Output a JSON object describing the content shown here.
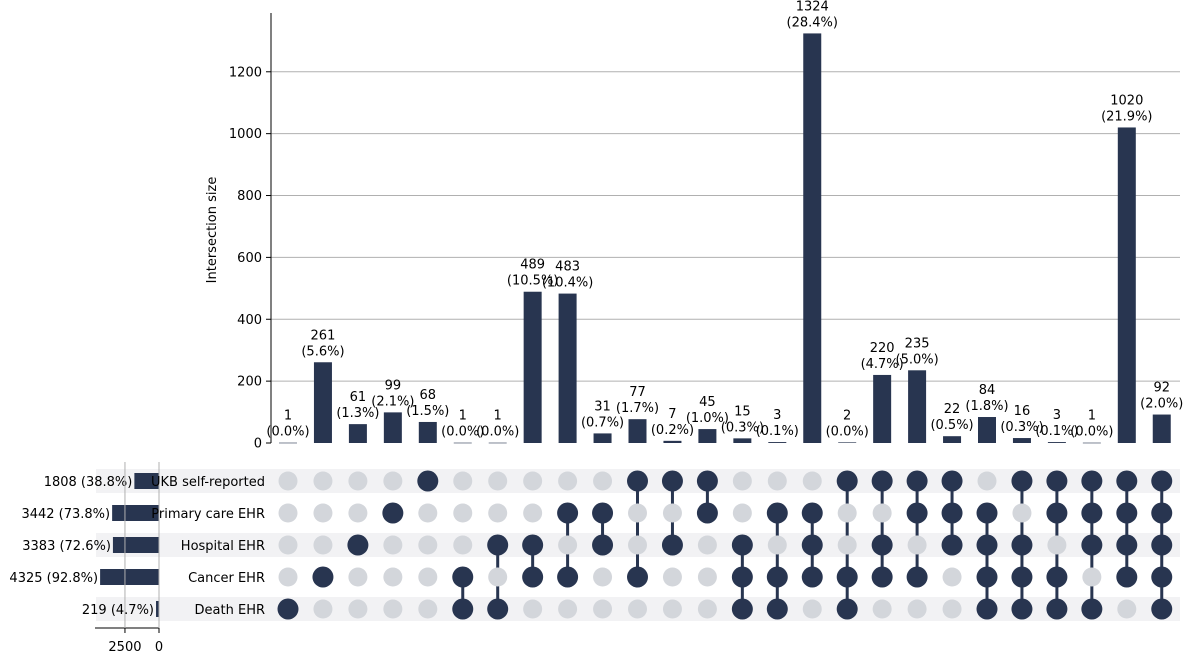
{
  "chart_data": {
    "type": "upset",
    "ylabel": "Intersection size",
    "ylim": [
      0,
      1390
    ],
    "yticks": [
      0,
      200,
      400,
      600,
      800,
      1000,
      1200
    ],
    "grid": true,
    "sets": [
      {
        "name": "UKB self-reported",
        "size": 1808,
        "label": "1808 (38.8%)"
      },
      {
        "name": "Primary care EHR",
        "size": 3442,
        "label": "3442 (73.8%)"
      },
      {
        "name": "Hospital EHR",
        "size": 3383,
        "label": "3383 (72.6%)"
      },
      {
        "name": "Cancer EHR",
        "size": 4325,
        "label": "4325 (92.8%)"
      },
      {
        "name": "Death EHR",
        "size": 219,
        "label": "219 (4.7%)"
      }
    ],
    "set_size_ticks": [
      2500,
      0
    ],
    "set_size_max": 4700,
    "intersections": [
      {
        "value": 1,
        "pct": "(0.0%)",
        "members": [
          0,
          0,
          0,
          0,
          1
        ]
      },
      {
        "value": 261,
        "pct": "(5.6%)",
        "members": [
          0,
          0,
          0,
          1,
          0
        ]
      },
      {
        "value": 61,
        "pct": "(1.3%)",
        "members": [
          0,
          0,
          1,
          0,
          0
        ]
      },
      {
        "value": 99,
        "pct": "(2.1%)",
        "members": [
          0,
          1,
          0,
          0,
          0
        ]
      },
      {
        "value": 68,
        "pct": "(1.5%)",
        "members": [
          1,
          0,
          0,
          0,
          0
        ]
      },
      {
        "value": 1,
        "pct": "(0.0%)",
        "members": [
          0,
          0,
          0,
          1,
          1
        ]
      },
      {
        "value": 1,
        "pct": "(0.0%)",
        "members": [
          0,
          0,
          1,
          0,
          1
        ]
      },
      {
        "value": 489,
        "pct": "(10.5%)",
        "members": [
          0,
          0,
          1,
          1,
          0
        ]
      },
      {
        "value": 483,
        "pct": "(10.4%)",
        "members": [
          0,
          1,
          0,
          1,
          0
        ]
      },
      {
        "value": 31,
        "pct": "(0.7%)",
        "members": [
          0,
          1,
          1,
          0,
          0
        ]
      },
      {
        "value": 77,
        "pct": "(1.7%)",
        "members": [
          1,
          0,
          0,
          1,
          0
        ]
      },
      {
        "value": 7,
        "pct": "(0.2%)",
        "members": [
          1,
          0,
          1,
          0,
          0
        ]
      },
      {
        "value": 45,
        "pct": "(1.0%)",
        "members": [
          1,
          1,
          0,
          0,
          0
        ]
      },
      {
        "value": 15,
        "pct": "(0.3%)",
        "members": [
          0,
          0,
          1,
          1,
          1
        ]
      },
      {
        "value": 3,
        "pct": "(0.1%)",
        "members": [
          0,
          1,
          0,
          1,
          1
        ]
      },
      {
        "value": 1324,
        "pct": "(28.4%)",
        "members": [
          0,
          1,
          1,
          1,
          0
        ]
      },
      {
        "value": 2,
        "pct": "(0.0%)",
        "members": [
          1,
          0,
          0,
          1,
          1
        ]
      },
      {
        "value": 220,
        "pct": "(4.7%)",
        "members": [
          1,
          0,
          1,
          1,
          0
        ]
      },
      {
        "value": 235,
        "pct": "(5.0%)",
        "members": [
          1,
          1,
          0,
          1,
          0
        ]
      },
      {
        "value": 22,
        "pct": "(0.5%)",
        "members": [
          1,
          1,
          1,
          0,
          0
        ]
      },
      {
        "value": 84,
        "pct": "(1.8%)",
        "members": [
          0,
          1,
          1,
          1,
          1
        ]
      },
      {
        "value": 16,
        "pct": "(0.3%)",
        "members": [
          1,
          0,
          1,
          1,
          1
        ]
      },
      {
        "value": 3,
        "pct": "(0.1%)",
        "members": [
          1,
          1,
          0,
          1,
          1
        ]
      },
      {
        "value": 1,
        "pct": "(0.0%)",
        "members": [
          1,
          1,
          1,
          0,
          1
        ]
      },
      {
        "value": 1020,
        "pct": "(21.9%)",
        "members": [
          1,
          1,
          1,
          1,
          0
        ]
      },
      {
        "value": 92,
        "pct": "(2.0%)",
        "members": [
          1,
          1,
          1,
          1,
          1
        ]
      }
    ],
    "colors": {
      "bar": "#283550",
      "dot_on": "#283550",
      "dot_off": "#d3d6db",
      "stripe": "#f2f2f4",
      "grid": "#b0b0b0",
      "axis": "#000000"
    }
  }
}
